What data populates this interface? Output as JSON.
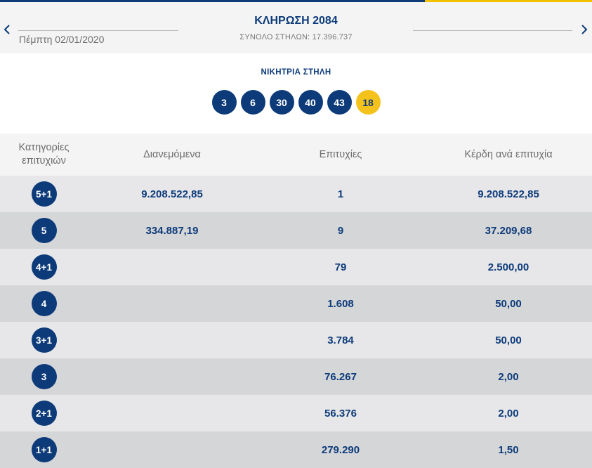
{
  "header": {
    "date": "Πέμπτη 02/01/2020",
    "draw_title": "ΚΛΗΡΩΣΗ 2084",
    "total_columns": "ΣΥΝΟΛΟ ΣΤΗΛΩΝ: 17.396.737",
    "prev_icon": "chevron-left-icon",
    "next_icon": "chevron-right-icon"
  },
  "winning": {
    "label": "ΝΙΚΗΤΡΙΑ ΣΤΗΛΗ",
    "numbers": [
      "3",
      "6",
      "30",
      "40",
      "43"
    ],
    "bonus": "18"
  },
  "table": {
    "headers": {
      "category_line1": "Κατηγορίες",
      "category_line2": "επιτυχιών",
      "distributed": "Διανεμόμενα",
      "winners": "Επιτυχίες",
      "prize": "Κέρδη ανά επιτυχία"
    },
    "rows": [
      {
        "category": "5+1",
        "distributed": "9.208.522,85",
        "winners": "1",
        "prize": "9.208.522,85"
      },
      {
        "category": "5",
        "distributed": "334.887,19",
        "winners": "9",
        "prize": "37.209,68"
      },
      {
        "category": "4+1",
        "distributed": "",
        "winners": "79",
        "prize": "2.500,00"
      },
      {
        "category": "4",
        "distributed": "",
        "winners": "1.608",
        "prize": "50,00"
      },
      {
        "category": "3+1",
        "distributed": "",
        "winners": "3.784",
        "prize": "50,00"
      },
      {
        "category": "3",
        "distributed": "",
        "winners": "76.267",
        "prize": "2,00"
      },
      {
        "category": "2+1",
        "distributed": "",
        "winners": "56.376",
        "prize": "2,00"
      },
      {
        "category": "1+1",
        "distributed": "",
        "winners": "279.290",
        "prize": "1,50"
      }
    ]
  },
  "colors": {
    "primary": "#0d3b7a",
    "accent": "#f2c200",
    "row_light": "#e7e7e9",
    "row_dark": "#d5d6d8"
  }
}
